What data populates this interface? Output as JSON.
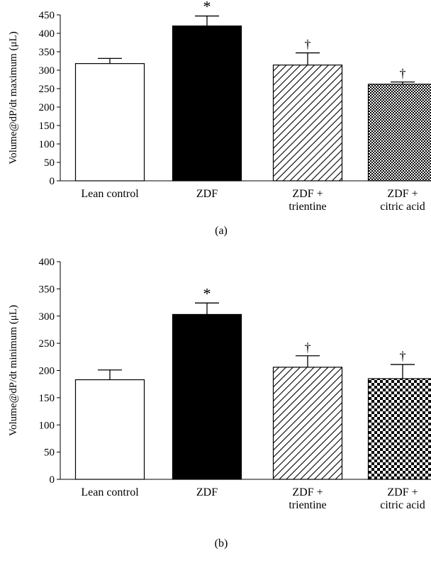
{
  "chart_data": [
    {
      "type": "bar",
      "panel_label": "(a)",
      "ylabel": "Volume@dP/dt maximum (μL)",
      "ylim": [
        0,
        450
      ],
      "yticks": [
        0,
        50,
        100,
        150,
        200,
        250,
        300,
        350,
        400,
        450
      ],
      "categories": [
        [
          "Lean control"
        ],
        [
          "ZDF"
        ],
        [
          "ZDF +",
          "trientine"
        ],
        [
          "ZDF +",
          "citric acid"
        ]
      ],
      "values": [
        318,
        420,
        314,
        262
      ],
      "errors": [
        14,
        27,
        33,
        6
      ],
      "markers": [
        "",
        "*",
        "†",
        "†"
      ],
      "fills": [
        "white",
        "black",
        "diagonal",
        "checker-fine"
      ]
    },
    {
      "type": "bar",
      "panel_label": "(b)",
      "ylabel": "Volume@dP/dt minimum (μL)",
      "ylim": [
        0,
        400
      ],
      "yticks": [
        0,
        50,
        100,
        150,
        200,
        250,
        300,
        350,
        400
      ],
      "categories": [
        [
          "Lean control"
        ],
        [
          "ZDF"
        ],
        [
          "ZDF +",
          "trientine"
        ],
        [
          "ZDF +",
          "citric acid"
        ]
      ],
      "values": [
        183,
        303,
        206,
        185
      ],
      "errors": [
        18,
        21,
        21,
        26
      ],
      "markers": [
        "",
        "*",
        "†",
        "†"
      ],
      "fills": [
        "white",
        "black",
        "diagonal",
        "checker-coarse"
      ]
    }
  ]
}
